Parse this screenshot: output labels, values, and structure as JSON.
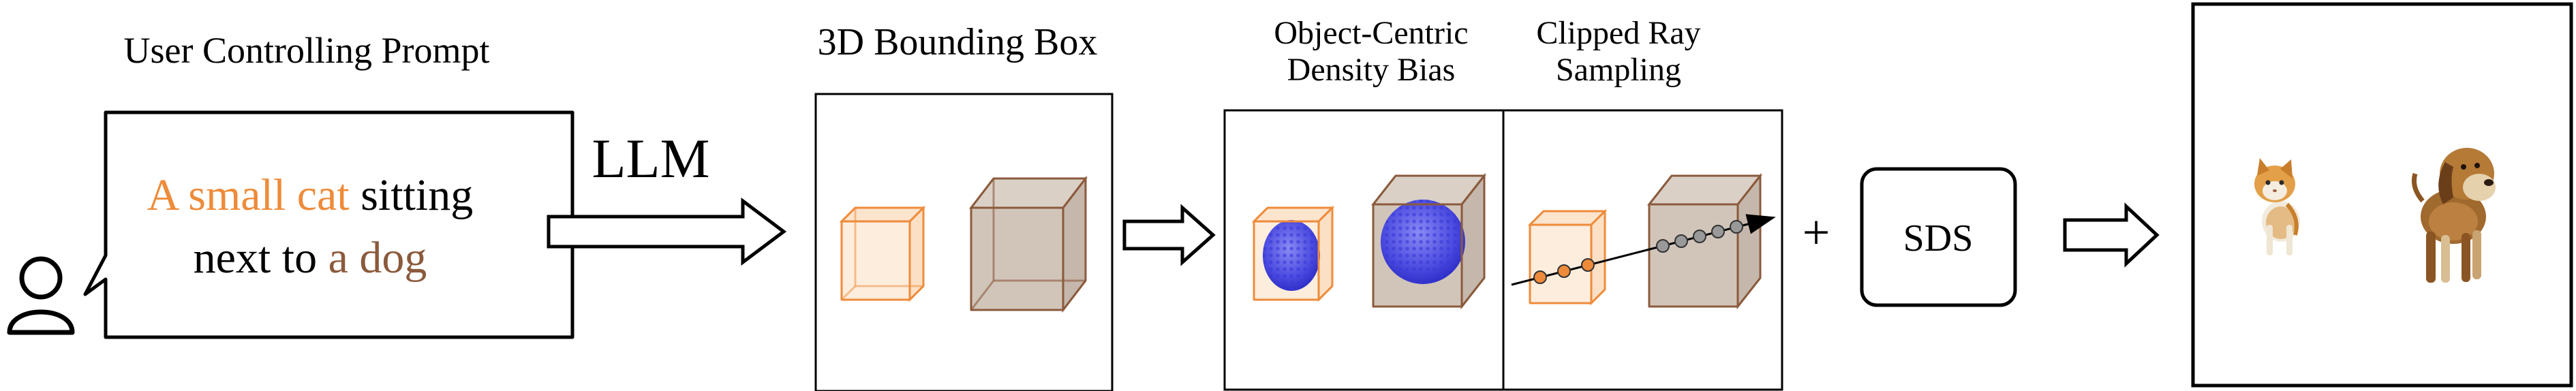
{
  "prompt_section": {
    "title": "User Controlling Prompt",
    "prompt_line1_a": "A small cat",
    "prompt_line1_b": " sitting",
    "prompt_line2_a": "next to ",
    "prompt_line2_b": "a dog",
    "user_icon": "user-icon"
  },
  "llm_label": "LLM",
  "bbox_section": {
    "title": "3D Bounding Box"
  },
  "density_section": {
    "title_line1": "Object-Centric",
    "title_line2": "Density Bias"
  },
  "ray_section": {
    "title_line1": "Clipped Ray",
    "title_line2": "Sampling"
  },
  "plus_symbol": "+",
  "sds_label": "SDS",
  "result_section": {
    "cat_icon": "cat-render",
    "dog_icon": "dog-render"
  },
  "colors": {
    "cat_orange": "#EE8B3A",
    "dog_brown": "#8B5A3C",
    "density_blue": "#5B5BE8",
    "ray_gray": "#888888"
  }
}
